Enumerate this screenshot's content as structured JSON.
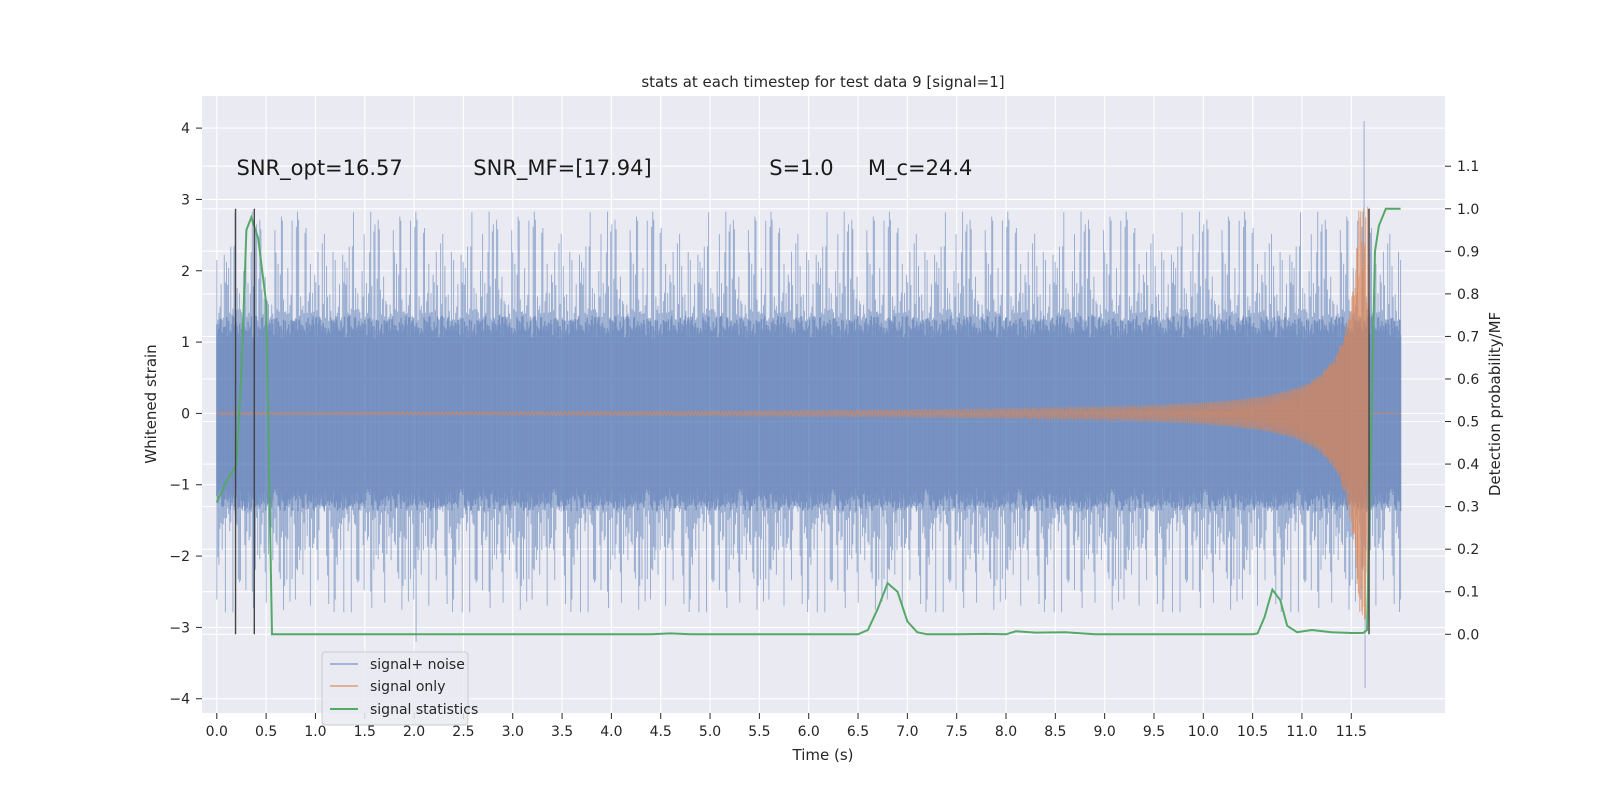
{
  "chart_data": {
    "type": "line",
    "title": "stats at each timestep for test data 9 [signal=1]",
    "xlabel": "Time (s)",
    "ylabel": "Whitened strain",
    "y2label": "Detection probability/MF",
    "xlim": [
      -0.15,
      12.45
    ],
    "ylim": [
      -4.2,
      4.45
    ],
    "y2lim": [
      -0.185,
      1.265
    ],
    "x_ticks": [
      "0.0",
      "0.5",
      "1.0",
      "1.5",
      "2.0",
      "2.5",
      "3.0",
      "3.5",
      "4.0",
      "4.5",
      "5.0",
      "5.5",
      "6.0",
      "6.5",
      "7.0",
      "7.5",
      "8.0",
      "8.5",
      "9.0",
      "9.5",
      "10.0",
      "10.5",
      "11.0",
      "11.5"
    ],
    "y_ticks": [
      "4",
      "3",
      "2",
      "1",
      "0",
      "−1",
      "−2",
      "−3",
      "−4"
    ],
    "y2_ticks": [
      "1.1",
      "1.0",
      "0.9",
      "0.8",
      "0.7",
      "0.6",
      "0.5",
      "0.4",
      "0.3",
      "0.2",
      "0.1",
      "0.0"
    ],
    "grid": true,
    "legend_position": "lower-left",
    "colors": {
      "background": "#eaeaf2",
      "grid": "#ffffff",
      "signal_noise": "#4c72b0",
      "signal_only": "#dd8452",
      "statistics": "#55a868",
      "markers": "#444444"
    },
    "annotations": [
      {
        "label": "SNR_opt=16.57",
        "x": 0.2
      },
      {
        "label": "SNR_MF=[17.94]",
        "x": 2.6
      },
      {
        "label": "S=1.0",
        "x": 5.6
      },
      {
        "label": "M_c=24.4",
        "x": 6.6
      }
    ],
    "vertical_markers_x": [
      0.19,
      0.38,
      11.68
    ],
    "series": [
      {
        "name": "signal+ noise",
        "description": "whitened strain noise, core band about ±1.3, spikes up to about ±3",
        "x_range": [
          0.0,
          12.0
        ],
        "extremes": [
          [
            2.02,
            -3.2
          ],
          [
            11.63,
            4.1
          ],
          [
            11.64,
            -3.85
          ]
        ]
      },
      {
        "name": "signal only",
        "description": "chirp signal with amplitude growing toward merger near t=11.68 s",
        "x_range": [
          0.0,
          12.0
        ],
        "peak_amplitude": 2.9
      },
      {
        "name": "signal statistics",
        "axis": "right",
        "x": [
          0.0,
          0.1,
          0.15,
          0.2,
          0.25,
          0.3,
          0.35,
          0.42,
          0.5,
          0.56,
          0.6,
          0.8,
          1.5,
          2.5,
          3.5,
          4.4,
          4.6,
          4.8,
          5.5,
          6.3,
          6.5,
          6.6,
          6.7,
          6.8,
          6.9,
          7.0,
          7.1,
          7.2,
          7.5,
          7.8,
          8.0,
          8.1,
          8.3,
          8.6,
          8.9,
          9.0,
          9.5,
          10.0,
          10.5,
          10.55,
          10.62,
          10.7,
          10.78,
          10.85,
          10.95,
          11.1,
          11.3,
          11.5,
          11.62,
          11.66,
          11.7,
          11.74,
          11.78,
          11.85,
          11.92,
          12.0
        ],
        "values": [
          0.31,
          0.36,
          0.38,
          0.4,
          0.62,
          0.95,
          0.98,
          0.93,
          0.78,
          0.0,
          0.0,
          0.0,
          0.0,
          0.0,
          0.0,
          0.0,
          0.002,
          0.0,
          0.0,
          0.0,
          0.0,
          0.01,
          0.06,
          0.12,
          0.1,
          0.03,
          0.005,
          0.0,
          0.0,
          0.001,
          0.0,
          0.007,
          0.004,
          0.005,
          0.0,
          0.0,
          0.0,
          0.0,
          0.0,
          0.002,
          0.04,
          0.105,
          0.08,
          0.02,
          0.005,
          0.01,
          0.005,
          0.003,
          0.003,
          0.01,
          0.45,
          0.9,
          0.96,
          1.0,
          1.0,
          1.0
        ]
      }
    ]
  }
}
